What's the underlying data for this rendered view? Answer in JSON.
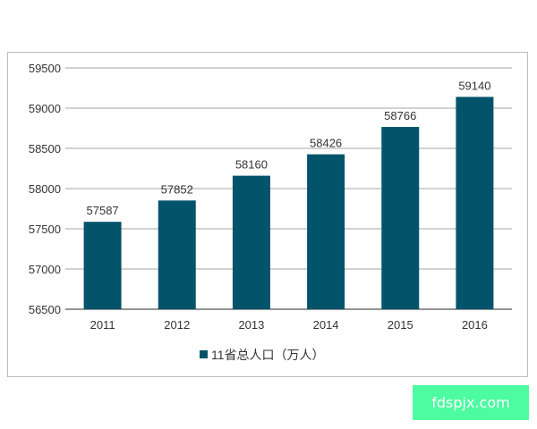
{
  "chart_data": {
    "type": "bar",
    "categories": [
      "2011",
      "2012",
      "2013",
      "2014",
      "2015",
      "2016"
    ],
    "series": [
      {
        "name": "11省总人口（万人）",
        "values": [
          57587,
          57852,
          58160,
          58426,
          58766,
          59140
        ],
        "color": "#03546b"
      }
    ],
    "data_labels": [
      "57587",
      "57852",
      "58160",
      "58426",
      "58766",
      "59140"
    ],
    "ylim": [
      56500,
      59500
    ],
    "yticks": [
      56500,
      57000,
      57500,
      58000,
      58500,
      59000,
      59500
    ],
    "grid": true,
    "legend_placement": "bottom"
  },
  "watermark": {
    "text": "fdspjx.com",
    "color": "#4dfca0"
  }
}
